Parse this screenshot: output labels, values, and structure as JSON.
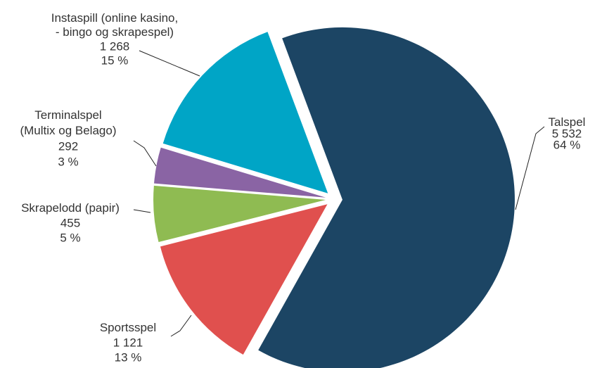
{
  "chart_data": {
    "type": "pie",
    "categories": [
      "Talspel",
      "Sportsspel",
      "Skrapelodd (papir)",
      "Terminalspel\n(Multix og Belago)",
      "Instaspill (online kasino,\n- bingo og skrapespel)"
    ],
    "values": [
      5532,
      1121,
      455,
      292,
      1268
    ],
    "value_labels": [
      "5 532",
      "1 121",
      "455",
      "292",
      "1 268"
    ],
    "percents": [
      64,
      13,
      5,
      3,
      15
    ],
    "percent_labels": [
      "64 %",
      "13 %",
      "5 %",
      "3 %",
      "15 %"
    ],
    "colors": [
      "#1c4564",
      "#e0504e",
      "#8fbb52",
      "#8a64a4",
      "#00a5c6"
    ]
  }
}
